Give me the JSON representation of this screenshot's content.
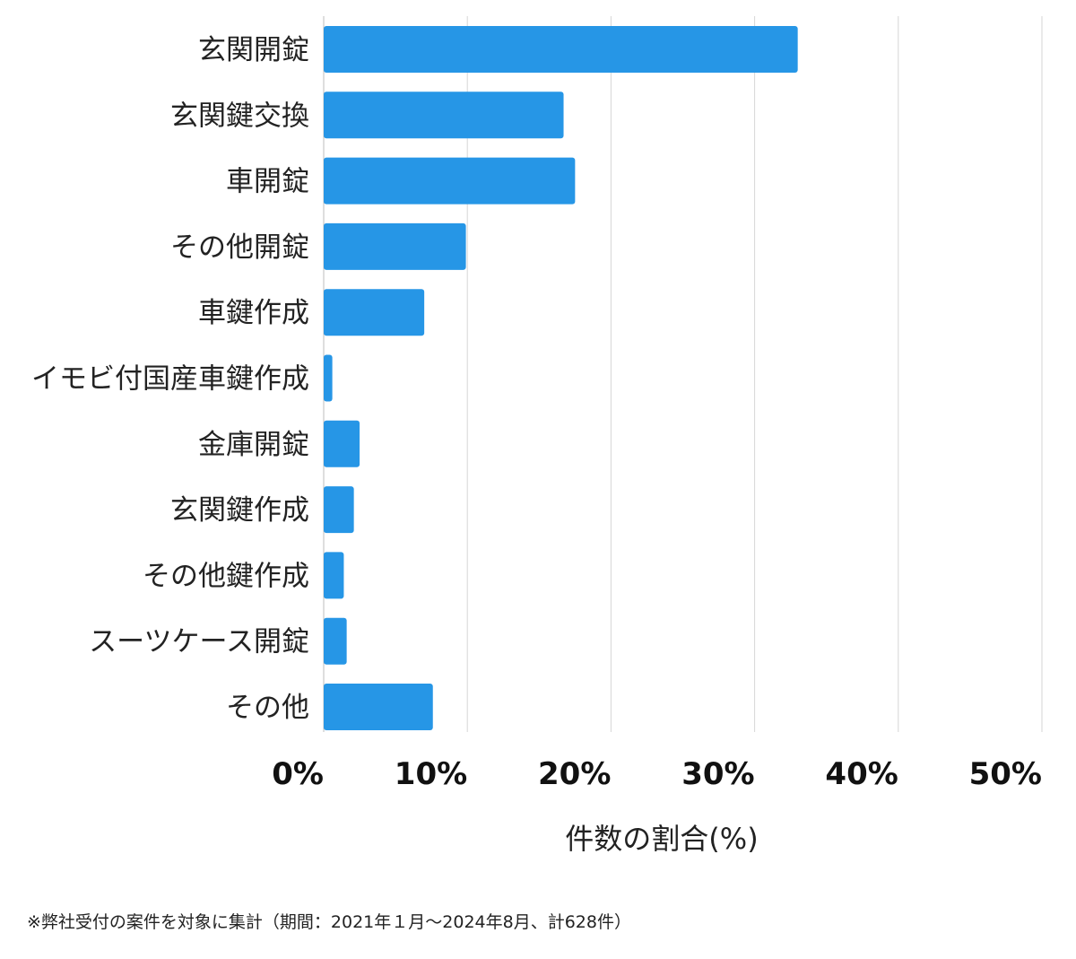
{
  "chart_data": {
    "type": "bar",
    "orientation": "horizontal",
    "categories": [
      "玄関開錠",
      "玄関鍵交換",
      "車開錠",
      "その他開錠",
      "車鍵作成",
      "イモビ付国産車鍵作成",
      "金庫開錠",
      "玄関鍵作成",
      "その他鍵作成",
      "スーツケース開錠",
      "その他"
    ],
    "values": [
      33.0,
      16.7,
      17.5,
      9.9,
      7.0,
      0.6,
      2.5,
      2.1,
      1.4,
      1.6,
      7.6
    ],
    "xlim": [
      0,
      50
    ],
    "xticks": [
      0,
      10,
      20,
      30,
      40,
      50
    ],
    "xtick_labels": [
      "0%",
      "10%",
      "20%",
      "30%",
      "40%",
      "50%"
    ],
    "xlabel": "件数の割合(%)",
    "ylabel": "",
    "title": "",
    "grid": "vertical",
    "legend": "none",
    "bar_color": "#2696e6",
    "grid_color": "#d6d6d6"
  },
  "footnote": "※弊社受付の案件を対象に集計（期間：2021年１月〜2024年8月、計628件）"
}
